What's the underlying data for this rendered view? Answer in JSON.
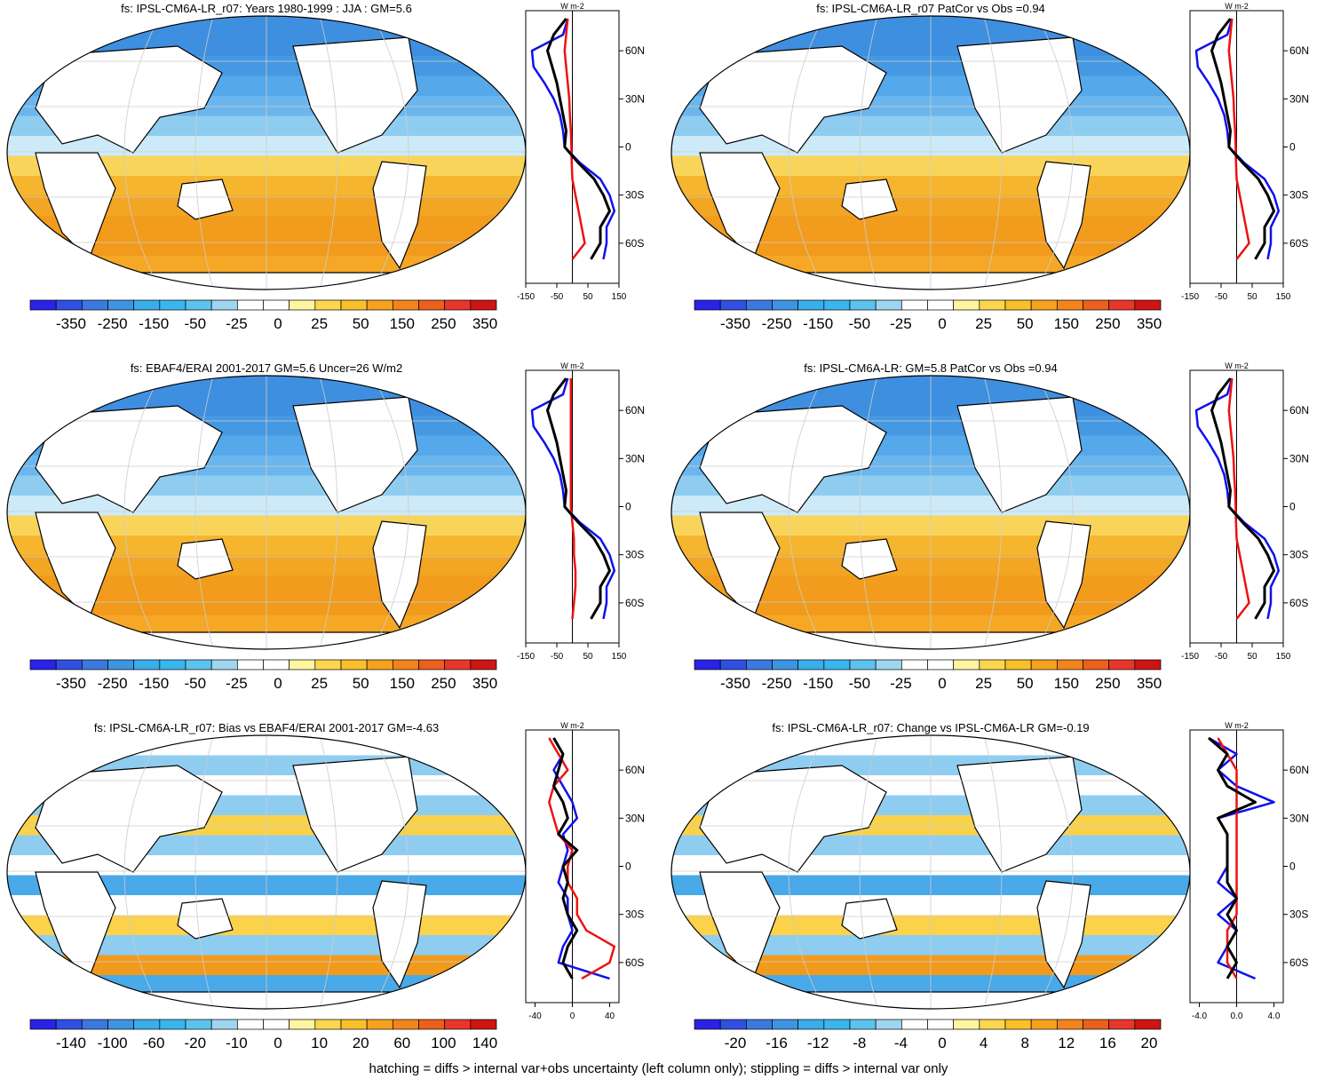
{
  "colorbar_colors": [
    "#2a22e6",
    "#2f50e0",
    "#3c79de",
    "#3d95e2",
    "#39aeeb",
    "#3ab6ee",
    "#5cc3ee",
    "#9ed6f0",
    "#ffffff",
    "#ffffff",
    "#fff4a0",
    "#fbd64e",
    "#f9c02a",
    "#f6a21e",
    "#f2841c",
    "#ec5f1c",
    "#e8362a",
    "#cf1414"
  ],
  "colors": {
    "model": "#000000",
    "obs": "#1010ee",
    "diff": "#ee1111",
    "land": "#ffffff"
  },
  "footer": "hatching = diffs > internal var+obs uncertainty (left column only); stippling = diffs > internal var only",
  "panels": [
    {
      "title": "fs: IPSL-CM6A-LR_r07: Years 1980-1999 : JJA : GM=5.6",
      "colorbar_labels": [
        "-350",
        "-250",
        "-150",
        "-50",
        "-25",
        "0",
        "25",
        "50",
        "150",
        "250",
        "350"
      ],
      "zonal_units": "W m-2",
      "zonal_xticks": [
        "-150",
        "-50",
        "50",
        "150"
      ],
      "zonal_yticks": [
        "60N",
        "30N",
        "0",
        "30S",
        "60S"
      ]
    },
    {
      "title": "fs: IPSL-CM6A-LR_r07 PatCor vs Obs =0.94",
      "colorbar_labels": [
        "-350",
        "-250",
        "-150",
        "-50",
        "-25",
        "0",
        "25",
        "50",
        "150",
        "250",
        "350"
      ],
      "zonal_units": "W m-2",
      "zonal_xticks": [
        "-150",
        "-50",
        "50",
        "150"
      ],
      "zonal_yticks": [
        "60N",
        "30N",
        "0",
        "30S",
        "60S"
      ]
    },
    {
      "title": "fs: EBAF4/ERAI 2001-2017 GM=5.6 Uncer=26 W/m2",
      "colorbar_labels": [
        "-350",
        "-250",
        "-150",
        "-50",
        "-25",
        "0",
        "25",
        "50",
        "150",
        "250",
        "350"
      ],
      "zonal_units": "W m-2",
      "zonal_xticks": [
        "-150",
        "-50",
        "50",
        "150"
      ],
      "zonal_yticks": [
        "60N",
        "30N",
        "0",
        "30S",
        "60S"
      ]
    },
    {
      "title": "fs: IPSL-CM6A-LR: GM=5.8 PatCor vs Obs =0.94",
      "colorbar_labels": [
        "-350",
        "-250",
        "-150",
        "-50",
        "-25",
        "0",
        "25",
        "50",
        "150",
        "250",
        "350"
      ],
      "zonal_units": "W m-2",
      "zonal_xticks": [
        "-150",
        "-50",
        "50",
        "150"
      ],
      "zonal_yticks": [
        "60N",
        "30N",
        "0",
        "30S",
        "60S"
      ]
    },
    {
      "title": "fs: IPSL-CM6A-LR_r07: Bias vs EBAF4/ERAI 2001-2017 GM=-4.63",
      "colorbar_labels": [
        "-140",
        "-100",
        "-60",
        "-20",
        "-10",
        "0",
        "10",
        "20",
        "60",
        "100",
        "140"
      ],
      "zonal_units": "W m-2",
      "zonal_xticks": [
        "-40",
        "0",
        "40"
      ],
      "zonal_yticks": [
        "60N",
        "30N",
        "0",
        "30S",
        "60S"
      ]
    },
    {
      "title": "fs: IPSL-CM6A-LR_r07: Change vs IPSL-CM6A-LR GM=-0.19",
      "colorbar_labels": [
        "-20",
        "-16",
        "-12",
        "-8",
        "-4",
        "0",
        "4",
        "8",
        "12",
        "16",
        "20"
      ],
      "zonal_units": "W m-2",
      "zonal_xticks": [
        "-4.0",
        "0.0",
        "4.0"
      ],
      "zonal_yticks": [
        "60N",
        "30N",
        "0",
        "30S",
        "60S"
      ]
    }
  ],
  "chart_data": [
    {
      "type": "line",
      "title": "fs: IPSL-CM6A-LR_r07: Years 1980-1999 : JJA : GM=5.6",
      "xlim": [
        -150,
        150
      ],
      "y": [
        80,
        70,
        60,
        50,
        40,
        30,
        20,
        10,
        0,
        -10,
        -20,
        -30,
        -40,
        -50,
        -60,
        -70
      ],
      "series": [
        {
          "values": [
            -20,
            -60,
            -80,
            -65,
            -50,
            -40,
            -30,
            -20,
            -25,
            20,
            70,
            100,
            120,
            90,
            90,
            60
          ]
        },
        {
          "values": [
            -15,
            -30,
            -130,
            -125,
            -90,
            -60,
            -40,
            -30,
            -25,
            25,
            90,
            120,
            135,
            110,
            110,
            100
          ]
        },
        {
          "values": [
            -15,
            -20,
            -25,
            -20,
            -15,
            -10,
            -8,
            -5,
            -3,
            -2,
            0,
            10,
            20,
            30,
            40,
            0
          ]
        }
      ]
    },
    {
      "type": "line",
      "title": "fs: IPSL-CM6A-LR_r07 PatCor vs Obs =0.94",
      "xlim": [
        -150,
        150
      ],
      "y": [
        80,
        70,
        60,
        50,
        40,
        30,
        20,
        10,
        0,
        -10,
        -20,
        -30,
        -40,
        -50,
        -60,
        -70
      ],
      "series": [
        {
          "values": [
            -20,
            -60,
            -80,
            -65,
            -50,
            -40,
            -30,
            -20,
            -25,
            20,
            70,
            100,
            120,
            90,
            90,
            60
          ]
        },
        {
          "values": [
            -15,
            -30,
            -130,
            -125,
            -90,
            -60,
            -40,
            -30,
            -25,
            25,
            90,
            120,
            135,
            110,
            110,
            100
          ]
        },
        {
          "values": [
            -15,
            -20,
            -25,
            -20,
            -15,
            -10,
            -8,
            -5,
            -3,
            -2,
            0,
            10,
            20,
            30,
            40,
            0
          ]
        }
      ]
    },
    {
      "type": "line",
      "title": "fs: EBAF4/ERAI 2001-2017 GM=5.6 Uncer=26 W/m2",
      "xlim": [
        -150,
        150
      ],
      "y": [
        80,
        70,
        60,
        50,
        40,
        30,
        20,
        10,
        0,
        -10,
        -20,
        -30,
        -40,
        -50,
        -60,
        -70
      ],
      "series": [
        {
          "values": [
            -20,
            -60,
            -80,
            -65,
            -50,
            -40,
            -30,
            -20,
            -25,
            20,
            70,
            100,
            120,
            90,
            90,
            60
          ]
        },
        {
          "values": [
            -15,
            -30,
            -130,
            -125,
            -90,
            -60,
            -40,
            -30,
            -25,
            25,
            90,
            120,
            135,
            110,
            110,
            100
          ]
        },
        {
          "values": [
            -5,
            -5,
            -5,
            -5,
            -5,
            -5,
            -5,
            -5,
            -5,
            0,
            5,
            5,
            10,
            10,
            5,
            0
          ]
        }
      ]
    },
    {
      "type": "line",
      "title": "fs: IPSL-CM6A-LR: GM=5.8 PatCor vs Obs =0.94",
      "xlim": [
        -150,
        150
      ],
      "y": [
        80,
        70,
        60,
        50,
        40,
        30,
        20,
        10,
        0,
        -10,
        -20,
        -30,
        -40,
        -50,
        -60,
        -70
      ],
      "series": [
        {
          "values": [
            -20,
            -60,
            -80,
            -65,
            -50,
            -40,
            -30,
            -20,
            -25,
            20,
            70,
            100,
            120,
            90,
            90,
            60
          ]
        },
        {
          "values": [
            -15,
            -30,
            -130,
            -125,
            -90,
            -60,
            -40,
            -30,
            -25,
            25,
            90,
            120,
            135,
            110,
            110,
            100
          ]
        },
        {
          "values": [
            -15,
            -20,
            -25,
            -20,
            -15,
            -10,
            -8,
            -5,
            -3,
            -2,
            0,
            10,
            20,
            30,
            40,
            0
          ]
        }
      ]
    },
    {
      "type": "line",
      "title": "fs: IPSL-CM6A-LR_r07: Bias vs EBAF4/ERAI 2001-2017 GM=-4.63",
      "xlim": [
        -50,
        50
      ],
      "y": [
        80,
        70,
        60,
        50,
        40,
        30,
        20,
        10,
        0,
        -10,
        -20,
        -30,
        -40,
        -50,
        -60,
        -70
      ],
      "series": [
        {
          "values": [
            -20,
            -10,
            -15,
            -20,
            -10,
            -5,
            -15,
            5,
            -10,
            -5,
            -10,
            -5,
            5,
            -5,
            -10,
            0
          ]
        },
        {
          "values": [
            -20,
            -10,
            -20,
            -10,
            0,
            5,
            -10,
            -5,
            -10,
            -15,
            -5,
            -5,
            0,
            -10,
            -15,
            40
          ]
        },
        {
          "values": [
            -25,
            -15,
            -5,
            -20,
            -25,
            -20,
            -15,
            0,
            -5,
            -5,
            5,
            5,
            15,
            45,
            40,
            10
          ]
        }
      ]
    },
    {
      "type": "line",
      "title": "fs: IPSL-CM6A-LR_r07: Change vs IPSL-CM6A-LR GM=-0.19",
      "xlim": [
        -5,
        5
      ],
      "y": [
        80,
        70,
        60,
        50,
        40,
        30,
        20,
        10,
        0,
        -10,
        -20,
        -30,
        -40,
        -50,
        -60,
        -70
      ],
      "series": [
        {
          "values": [
            -3,
            -1,
            -2,
            -1,
            2,
            -2,
            -1,
            -1,
            -1,
            -1,
            0,
            -1,
            0,
            -1,
            0,
            -1
          ]
        },
        {
          "values": [
            -3,
            0,
            -2,
            0,
            4,
            -2,
            -1,
            -1,
            -1,
            -2,
            0,
            -2,
            0,
            -1,
            -2,
            2
          ]
        },
        {
          "values": [
            -2,
            -1,
            0,
            0,
            0,
            0,
            0,
            0,
            0,
            0,
            0,
            0,
            -1,
            -1,
            -1,
            0
          ]
        }
      ]
    }
  ]
}
